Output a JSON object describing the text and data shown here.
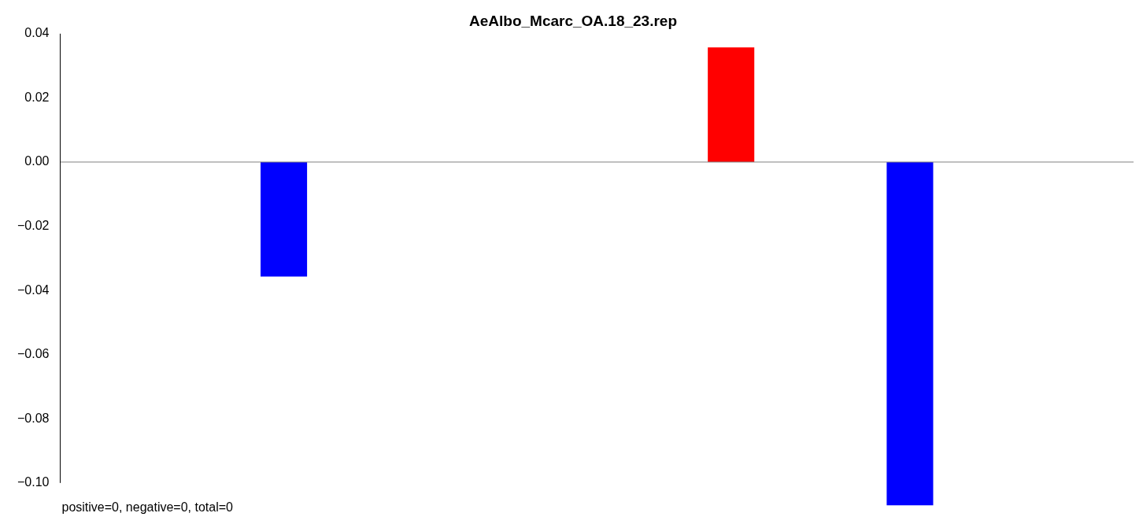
{
  "chart_data": {
    "type": "bar",
    "title": "AeAlbo_Mcarc_OA.18_23.rep",
    "categories": [
      null,
      null,
      null,
      null,
      null,
      null,
      null,
      null,
      null,
      null,
      null,
      null
    ],
    "values": [
      0,
      0,
      -0.0357,
      0,
      0,
      0,
      0,
      0.0357,
      0,
      -0.107,
      0,
      0
    ],
    "colors": [
      "#0000ff",
      "#0000ff",
      "#0000ff",
      "#0000ff",
      "#0000ff",
      "#0000ff",
      "#0000ff",
      "#ff0000",
      "#0000ff",
      "#0000ff",
      "#0000ff",
      "#0000ff"
    ],
    "ylim": [
      -0.107,
      0.04
    ],
    "yticks": [
      {
        "value": -0.1,
        "label": "−0.10"
      },
      {
        "value": -0.08,
        "label": "−0.08"
      },
      {
        "value": -0.06,
        "label": "−0.06"
      },
      {
        "value": -0.04,
        "label": "−0.04"
      },
      {
        "value": -0.02,
        "label": "−0.02"
      },
      {
        "value": 0,
        "label": "0.00"
      },
      {
        "value": 0.02,
        "label": "0.02"
      },
      {
        "value": 0.04,
        "label": "0.04"
      }
    ],
    "ref_lines": [
      {
        "axis": "y",
        "value": 0,
        "color": "#808080"
      }
    ],
    "annotations": [
      "positive=0, negative=0, total=0"
    ],
    "tick_labels": "y",
    "grid": false,
    "legend": false
  }
}
